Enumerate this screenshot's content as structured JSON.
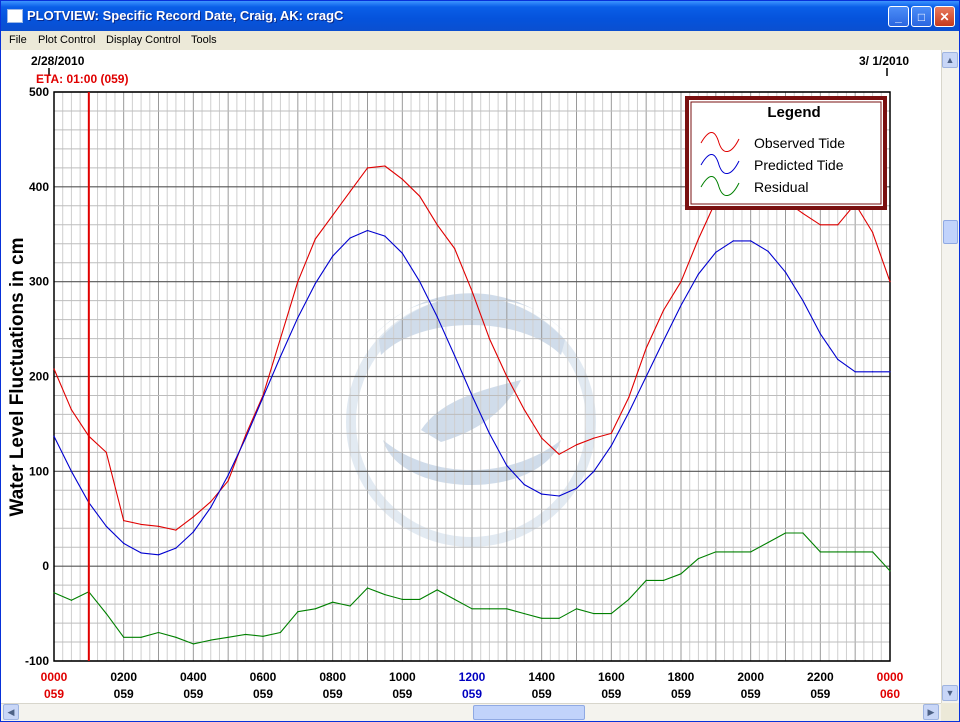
{
  "window": {
    "title": "PLOTVIEW: Specific Record Date, Craig, AK: cragC",
    "minimize_glyph": "_",
    "maximize_glyph": "□",
    "close_glyph": "✕"
  },
  "menu": [
    "File",
    "Plot Control",
    "Display Control",
    "Tools"
  ],
  "header": {
    "start_date": "2/28/2010",
    "end_date": "3/ 1/2010",
    "eta_label": "ETA: 01:00 (059)"
  },
  "legend": {
    "title": "Legend",
    "items": [
      {
        "label": "Observed Tide",
        "color": "#E00000"
      },
      {
        "label": "Predicted Tide",
        "color": "#0000D0"
      },
      {
        "label": "Residual",
        "color": "#008000"
      }
    ]
  },
  "chart_data": {
    "type": "line",
    "ylabel": "Water Level Fluctuations in cm",
    "ylim": [
      -100,
      500
    ],
    "yticks": [
      500,
      400,
      300,
      200,
      100,
      0,
      -100
    ],
    "xlim": [
      0,
      24
    ],
    "grid": true,
    "legend_position": "top-right",
    "eta_hour": 1.0,
    "x_ticks": [
      {
        "time": "0000",
        "day": "059",
        "color": "#E00000"
      },
      {
        "time": "0200",
        "day": "059",
        "color": "#000000"
      },
      {
        "time": "0400",
        "day": "059",
        "color": "#000000"
      },
      {
        "time": "0600",
        "day": "059",
        "color": "#000000"
      },
      {
        "time": "0800",
        "day": "059",
        "color": "#000000"
      },
      {
        "time": "1000",
        "day": "059",
        "color": "#000000"
      },
      {
        "time": "1200",
        "day": "059",
        "color": "#0000C0"
      },
      {
        "time": "1400",
        "day": "059",
        "color": "#000000"
      },
      {
        "time": "1600",
        "day": "059",
        "color": "#000000"
      },
      {
        "time": "1800",
        "day": "059",
        "color": "#000000"
      },
      {
        "time": "2000",
        "day": "059",
        "color": "#000000"
      },
      {
        "time": "2200",
        "day": "059",
        "color": "#000000"
      },
      {
        "time": "0000",
        "day": "060",
        "color": "#E00000"
      }
    ],
    "series": [
      {
        "name": "Observed Tide",
        "color": "#E00000",
        "x": [
          0,
          0.5,
          1.0,
          1.5,
          2.0,
          2.5,
          3.0,
          3.5,
          4.0,
          4.5,
          5.0,
          5.5,
          6.0,
          6.5,
          7.0,
          7.5,
          8.0,
          8.5,
          9.0,
          9.5,
          10.0,
          10.5,
          11.0,
          11.5,
          12.0,
          12.5,
          13.0,
          13.5,
          14.0,
          14.5,
          15.0,
          15.5,
          16.0,
          16.5,
          17.0,
          17.5,
          18.0,
          18.5,
          19.0,
          19.5,
          20.0,
          20.5,
          21.0,
          21.5,
          22.0,
          22.5,
          23.0,
          23.5,
          24.0
        ],
        "y": [
          208,
          165,
          137,
          120,
          48,
          44,
          42,
          38,
          52,
          68,
          90,
          138,
          180,
          240,
          300,
          345,
          370,
          395,
          420,
          422,
          408,
          390,
          360,
          335,
          290,
          240,
          200,
          165,
          135,
          118,
          128,
          135,
          140,
          178,
          230,
          270,
          300,
          345,
          385,
          405,
          410,
          398,
          385,
          372,
          360,
          360,
          382,
          352,
          300
        ]
      },
      {
        "name": "Predicted Tide",
        "color": "#0000D0",
        "x": [
          0,
          0.5,
          1.0,
          1.5,
          2.0,
          2.5,
          3.0,
          3.5,
          4.0,
          4.5,
          5.0,
          5.5,
          6.0,
          6.5,
          7.0,
          7.5,
          8.0,
          8.5,
          9.0,
          9.5,
          10.0,
          10.5,
          11.0,
          11.5,
          12.0,
          12.5,
          13.0,
          13.5,
          14.0,
          14.5,
          15.0,
          15.5,
          16.0,
          16.5,
          17.0,
          17.5,
          18.0,
          18.5,
          19.0,
          19.5,
          20.0,
          20.5,
          21.0,
          21.5,
          22.0,
          22.5,
          23.0,
          23.5,
          24.0
        ],
        "y": [
          137,
          100,
          67,
          42,
          24,
          14,
          12,
          19,
          36,
          62,
          96,
          135,
          178,
          221,
          262,
          298,
          327,
          346,
          354,
          348,
          330,
          300,
          263,
          222,
          180,
          140,
          106,
          86,
          76,
          74,
          82,
          100,
          127,
          162,
          200,
          238,
          275,
          308,
          331,
          343,
          343,
          332,
          310,
          280,
          245,
          218,
          205,
          205,
          205
        ]
      },
      {
        "name": "Residual",
        "color": "#008000",
        "x": [
          0,
          0.5,
          1.0,
          1.5,
          2.0,
          2.5,
          3.0,
          3.5,
          4.0,
          4.5,
          5.0,
          5.5,
          6.0,
          6.5,
          7.0,
          7.5,
          8.0,
          8.5,
          9.0,
          9.5,
          10.0,
          10.5,
          11.0,
          11.5,
          12.0,
          12.5,
          13.0,
          13.5,
          14.0,
          14.5,
          15.0,
          15.5,
          16.0,
          16.5,
          17.0,
          17.5,
          18.0,
          18.5,
          19.0,
          19.5,
          20.0,
          20.5,
          21.0,
          21.5,
          22.0,
          22.5,
          23.0,
          23.5,
          24.0
        ],
        "y": [
          -28,
          -36,
          -27,
          -50,
          -75,
          -75,
          -70,
          -75,
          -82,
          -78,
          -75,
          -72,
          -74,
          -70,
          -48,
          -45,
          -38,
          -42,
          -23,
          -30,
          -35,
          -35,
          -25,
          -35,
          -45,
          -45,
          -45,
          -50,
          -55,
          -55,
          -45,
          -50,
          -50,
          -35,
          -15,
          -15,
          -8,
          8,
          15,
          15,
          15,
          25,
          35,
          35,
          15,
          15,
          15,
          15,
          -5
        ]
      }
    ]
  }
}
